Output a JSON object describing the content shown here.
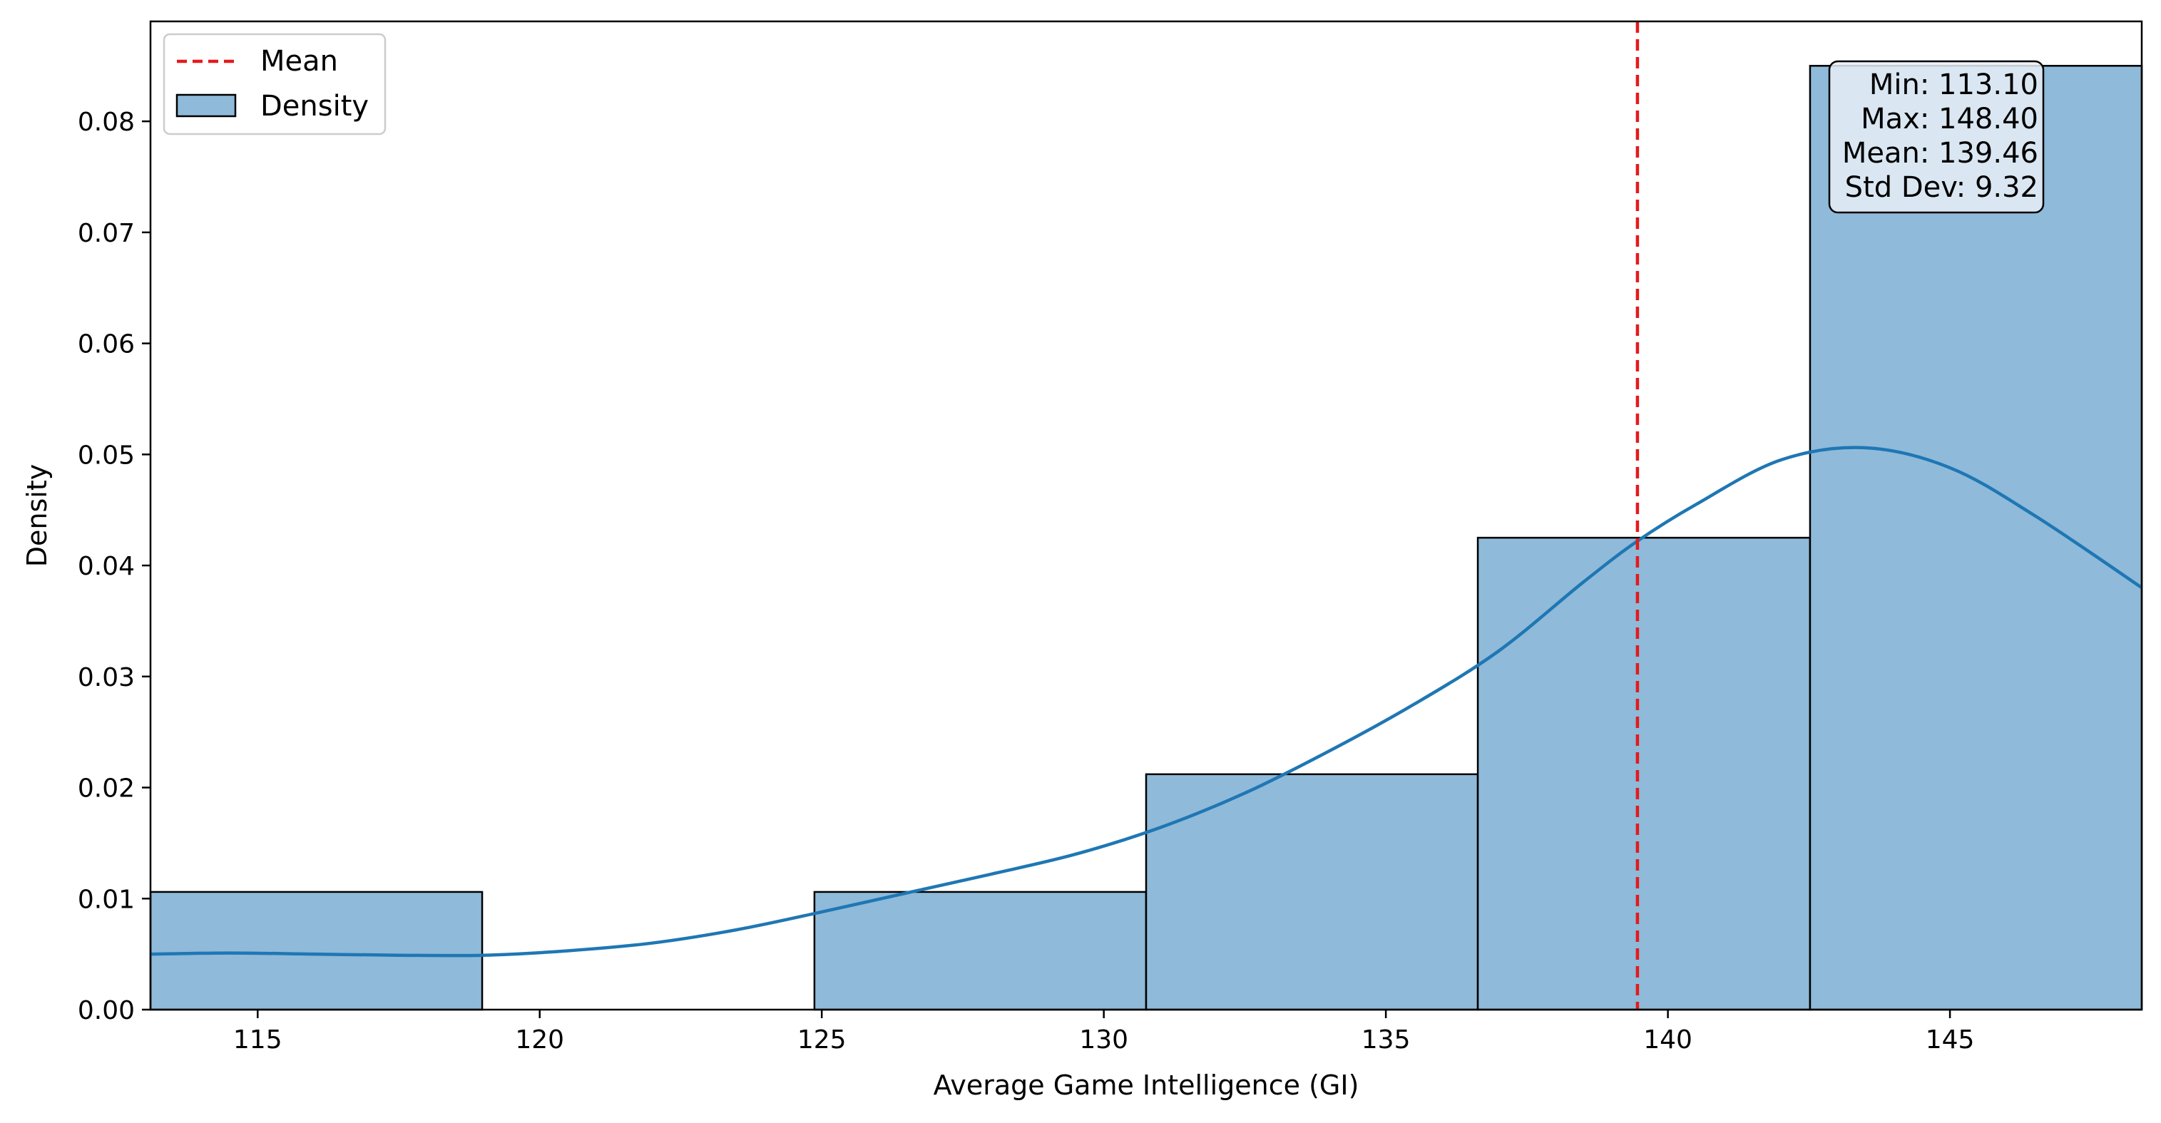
{
  "chart_data": {
    "type": "bar",
    "xlabel": "Average Game Intelligence (GI)",
    "ylabel": "Density",
    "xlim": [
      113.1,
      148.4
    ],
    "ylim": [
      0,
      0.089
    ],
    "x_ticks": [
      115,
      120,
      125,
      130,
      135,
      140,
      145
    ],
    "y_ticks": [
      0.0,
      0.01,
      0.02,
      0.03,
      0.04,
      0.05,
      0.06,
      0.07,
      0.08
    ],
    "y_tick_labels": [
      "0.00",
      "0.01",
      "0.02",
      "0.03",
      "0.04",
      "0.05",
      "0.06",
      "0.07",
      "0.08"
    ],
    "bins": [
      {
        "x0": 113.1,
        "x1": 118.98,
        "density": 0.0106
      },
      {
        "x0": 118.98,
        "x1": 124.87,
        "density": 0.0
      },
      {
        "x0": 124.87,
        "x1": 130.75,
        "density": 0.0106
      },
      {
        "x0": 130.75,
        "x1": 136.63,
        "density": 0.0212
      },
      {
        "x0": 136.63,
        "x1": 142.52,
        "density": 0.0425
      },
      {
        "x0": 142.52,
        "x1": 148.4,
        "density": 0.085
      }
    ],
    "kde": {
      "x": [
        113.1,
        114.5,
        116,
        117.5,
        119,
        120.5,
        122,
        123.5,
        125,
        126.5,
        128,
        129.5,
        131,
        132.5,
        134,
        135.5,
        137,
        138.5,
        139.46,
        140.5,
        142,
        143.5,
        145,
        146.5,
        148.4
      ],
      "y": [
        0.005,
        0.0051,
        0.005,
        0.0049,
        0.0049,
        0.0053,
        0.006,
        0.0072,
        0.0088,
        0.0105,
        0.0122,
        0.014,
        0.0164,
        0.0195,
        0.0233,
        0.0275,
        0.0323,
        0.0385,
        0.0422,
        0.0455,
        0.0495,
        0.0506,
        0.0488,
        0.0445,
        0.038
      ]
    },
    "mean_line": {
      "x": 139.46,
      "color": "#e41a1c"
    },
    "series": [
      {
        "name": "Density",
        "color": "#1f77b4"
      }
    ],
    "legend": {
      "position": "top-left",
      "entries": [
        {
          "label": "Mean",
          "style": "dashed-line",
          "color": "#e41a1c"
        },
        {
          "label": "Density",
          "style": "patch",
          "color": "#8fbad9"
        }
      ]
    },
    "stats_box": {
      "position": "top-right",
      "lines": [
        "Min: 113.10",
        "Max: 148.40",
        "Mean: 139.46",
        "Std Dev: 9.32"
      ]
    },
    "colors": {
      "bar_fill": "#8fbad9",
      "bar_edge": "#000000",
      "kde_line": "#1f77b4",
      "mean_line": "#e41a1c",
      "stats_box_fill": "#e8eff6"
    },
    "grid": false
  }
}
